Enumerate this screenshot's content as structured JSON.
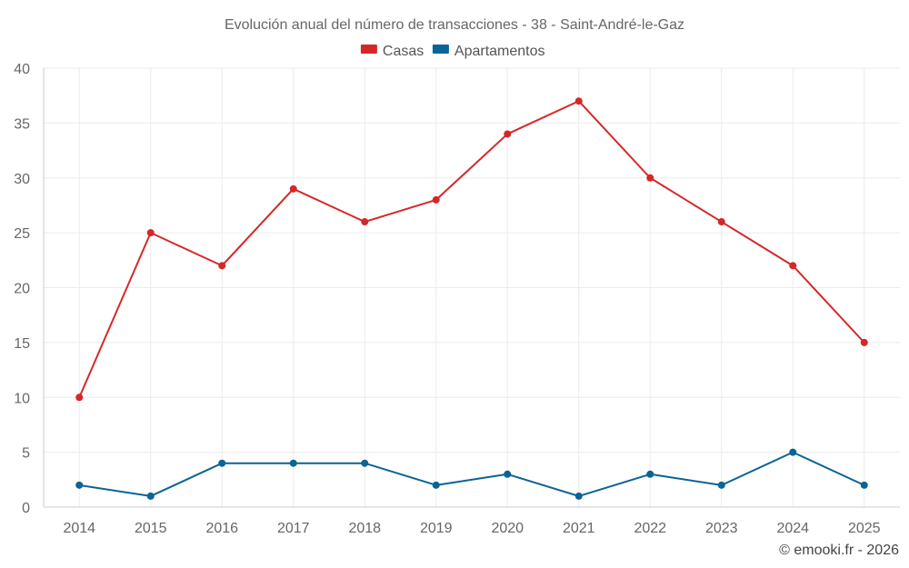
{
  "chart_data": {
    "type": "line",
    "title": "Evolución anual del número de transacciones - 38 - Saint-André-le-Gaz",
    "categories": [
      "2014",
      "2015",
      "2016",
      "2017",
      "2018",
      "2019",
      "2020",
      "2021",
      "2022",
      "2023",
      "2024",
      "2025"
    ],
    "series": [
      {
        "name": "Casas",
        "color": "#d62728",
        "values": [
          10,
          25,
          22,
          29,
          26,
          28,
          34,
          37,
          30,
          26,
          22,
          15
        ]
      },
      {
        "name": "Apartamentos",
        "color": "#0b6396",
        "values": [
          2,
          1,
          4,
          4,
          4,
          2,
          3,
          1,
          3,
          2,
          5,
          2
        ]
      }
    ],
    "ylim": [
      0,
      40
    ],
    "yticks": [
      "0",
      "5",
      "10",
      "15",
      "20",
      "25",
      "30",
      "35",
      "40"
    ],
    "xlabel": "",
    "ylabel": "",
    "legend": "top-center",
    "grid": true
  },
  "credit": "© emooki.fr - 2026"
}
